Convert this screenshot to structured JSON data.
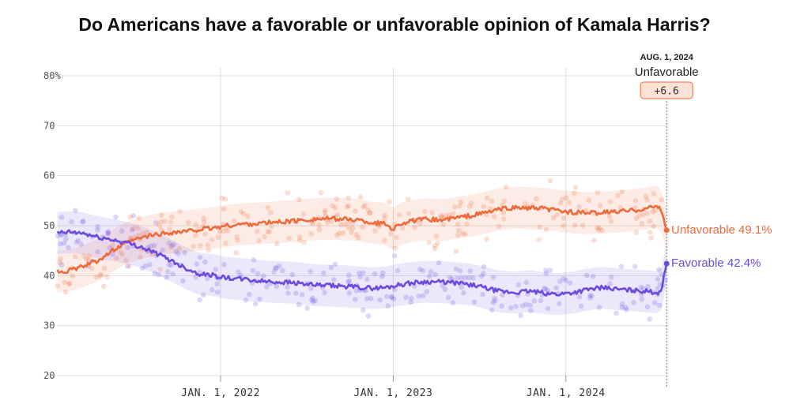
{
  "title": "Do Americans have a favorable or unfavorable opinion of Kamala Harris?",
  "chart_data": {
    "type": "line",
    "title": "Do Americans have a favorable or unfavorable opinion of Kamala Harris?",
    "y_unit_suffix": "%",
    "ylim": [
      20,
      80
    ],
    "yticks": [
      20,
      30,
      40,
      50,
      60,
      70,
      80
    ],
    "xlim": [
      "2021-01-20",
      "2024-08-04"
    ],
    "xticks": [
      {
        "date": "2022-01-01",
        "label": "JAN. 1, 2022"
      },
      {
        "date": "2023-01-01",
        "label": "JAN. 1, 2023"
      },
      {
        "date": "2024-01-01",
        "label": "JAN. 1, 2024"
      }
    ],
    "grid": true,
    "series": [
      {
        "name": "Unfavorable",
        "color": "#ef6a3a",
        "end_label": "Unfavorable 49.1%",
        "end_value": 49.1,
        "points": [
          [
            "2021-01-21",
            40.8
          ],
          [
            "2021-02-15",
            41.0
          ],
          [
            "2021-03-15",
            41.8
          ],
          [
            "2021-04-15",
            43.0
          ],
          [
            "2021-05-15",
            44.8
          ],
          [
            "2021-06-15",
            46.5
          ],
          [
            "2021-07-15",
            47.5
          ],
          [
            "2021-08-15",
            48.2
          ],
          [
            "2021-09-15",
            48.6
          ],
          [
            "2021-10-15",
            48.8
          ],
          [
            "2021-11-15",
            49.2
          ],
          [
            "2021-12-15",
            49.5
          ],
          [
            "2022-01-15",
            50.0
          ],
          [
            "2022-02-15",
            50.3
          ],
          [
            "2022-03-15",
            50.4
          ],
          [
            "2022-04-15",
            50.6
          ],
          [
            "2022-05-15",
            50.8
          ],
          [
            "2022-06-15",
            51.0
          ],
          [
            "2022-07-15",
            51.3
          ],
          [
            "2022-08-15",
            51.4
          ],
          [
            "2022-09-15",
            51.3
          ],
          [
            "2022-10-15",
            51.2
          ],
          [
            "2022-11-15",
            50.6
          ],
          [
            "2022-12-15",
            50.4
          ],
          [
            "2023-01-01",
            49.3
          ],
          [
            "2023-01-15",
            50.4
          ],
          [
            "2023-02-15",
            51.0
          ],
          [
            "2023-03-15",
            51.3
          ],
          [
            "2023-04-15",
            51.1
          ],
          [
            "2023-05-15",
            51.6
          ],
          [
            "2023-06-15",
            52.0
          ],
          [
            "2023-07-15",
            52.6
          ],
          [
            "2023-08-15",
            53.3
          ],
          [
            "2023-09-15",
            53.6
          ],
          [
            "2023-10-15",
            53.5
          ],
          [
            "2023-11-15",
            53.4
          ],
          [
            "2023-12-15",
            53.0
          ],
          [
            "2024-01-15",
            52.7
          ],
          [
            "2024-02-15",
            52.5
          ],
          [
            "2024-03-15",
            52.6
          ],
          [
            "2024-04-15",
            52.8
          ],
          [
            "2024-05-15",
            53.0
          ],
          [
            "2024-06-15",
            53.4
          ],
          [
            "2024-07-10",
            53.9
          ],
          [
            "2024-07-20",
            53.1
          ],
          [
            "2024-07-27",
            51.0
          ],
          [
            "2024-08-01",
            49.1
          ]
        ]
      },
      {
        "name": "Favorable",
        "color": "#6b4ae0",
        "end_label": "Favorable 42.4%",
        "end_value": 42.4,
        "points": [
          [
            "2021-01-21",
            48.5
          ],
          [
            "2021-02-15",
            48.7
          ],
          [
            "2021-03-15",
            48.5
          ],
          [
            "2021-04-15",
            47.7
          ],
          [
            "2021-05-15",
            47.2
          ],
          [
            "2021-06-15",
            46.6
          ],
          [
            "2021-07-15",
            45.8
          ],
          [
            "2021-08-15",
            44.6
          ],
          [
            "2021-09-15",
            43.2
          ],
          [
            "2021-10-15",
            41.7
          ],
          [
            "2021-11-15",
            40.4
          ],
          [
            "2021-12-15",
            40.1
          ],
          [
            "2022-01-15",
            39.5
          ],
          [
            "2022-02-15",
            39.3
          ],
          [
            "2022-03-15",
            39.0
          ],
          [
            "2022-04-15",
            38.8
          ],
          [
            "2022-05-15",
            38.7
          ],
          [
            "2022-06-15",
            38.5
          ],
          [
            "2022-07-15",
            38.1
          ],
          [
            "2022-08-15",
            38.0
          ],
          [
            "2022-09-15",
            37.9
          ],
          [
            "2022-10-15",
            37.7
          ],
          [
            "2022-11-15",
            37.5
          ],
          [
            "2022-12-15",
            37.6
          ],
          [
            "2023-01-15",
            38.2
          ],
          [
            "2023-02-15",
            38.6
          ],
          [
            "2023-03-15",
            38.8
          ],
          [
            "2023-04-15",
            38.7
          ],
          [
            "2023-05-15",
            38.5
          ],
          [
            "2023-06-15",
            38.2
          ],
          [
            "2023-07-15",
            37.5
          ],
          [
            "2023-08-15",
            36.8
          ],
          [
            "2023-09-15",
            36.6
          ],
          [
            "2023-10-15",
            36.9
          ],
          [
            "2023-11-15",
            36.5
          ],
          [
            "2023-12-15",
            36.3
          ],
          [
            "2024-01-15",
            36.6
          ],
          [
            "2024-02-15",
            37.2
          ],
          [
            "2024-03-15",
            37.6
          ],
          [
            "2024-04-15",
            37.3
          ],
          [
            "2024-05-15",
            37.1
          ],
          [
            "2024-06-15",
            36.9
          ],
          [
            "2024-07-15",
            36.6
          ],
          [
            "2024-07-22",
            37.5
          ],
          [
            "2024-07-27",
            40.0
          ],
          [
            "2024-08-01",
            42.4
          ]
        ]
      }
    ],
    "header": {
      "date": "AUG. 1, 2024",
      "leader": "Unfavorable",
      "margin": "+6.6"
    }
  }
}
